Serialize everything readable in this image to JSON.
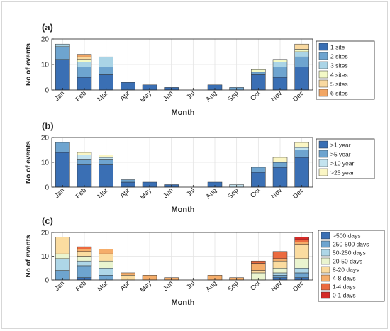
{
  "chart_data": [
    {
      "type": "bar",
      "stacked": true,
      "panel_label": "(a)",
      "xlabel": "Month",
      "ylabel": "No of events",
      "ylim": [
        0,
        20
      ],
      "yticks": [
        0,
        10,
        20
      ],
      "grid": true,
      "legend_position": "right",
      "categories": [
        "Jan",
        "Feb",
        "Mar",
        "Apr",
        "May",
        "Jun",
        "Jul",
        "Aug",
        "Sep",
        "Oct",
        "Nov",
        "Dec"
      ],
      "series": [
        {
          "name": "1 site",
          "color": "#3a6fb4",
          "values": [
            12,
            5,
            6,
            3,
            2,
            1,
            0,
            2,
            0,
            6,
            5,
            9
          ]
        },
        {
          "name": "2 sites",
          "color": "#6ea4cf",
          "values": [
            5,
            4,
            3,
            0,
            0,
            0,
            0,
            0,
            1,
            1,
            4,
            4
          ]
        },
        {
          "name": "3 sites",
          "color": "#aad4e6",
          "values": [
            1,
            2,
            4,
            0,
            0,
            0,
            0,
            0,
            0,
            0,
            2,
            2
          ]
        },
        {
          "name": "4 sites",
          "color": "#f3f9c6",
          "values": [
            0,
            1,
            0,
            0,
            0,
            0,
            0,
            0,
            0,
            1,
            1,
            1
          ]
        },
        {
          "name": "5 sites",
          "color": "#f9d9a0",
          "values": [
            0,
            1,
            0,
            0,
            0,
            0,
            0,
            0,
            0,
            0,
            0,
            2
          ]
        },
        {
          "name": "6 sites",
          "color": "#f2a664",
          "values": [
            0,
            1,
            0,
            0,
            0,
            0,
            0,
            0,
            0,
            0,
            0,
            0
          ]
        }
      ]
    },
    {
      "type": "bar",
      "stacked": true,
      "panel_label": "(b)",
      "xlabel": "Month",
      "ylabel": "No of events",
      "ylim": [
        0,
        20
      ],
      "yticks": [
        0,
        10,
        20
      ],
      "grid": true,
      "legend_position": "right",
      "categories": [
        "Jan",
        "Feb",
        "Mar",
        "Apr",
        "May",
        "Jun",
        "Jul",
        "Aug",
        "Sep",
        "Oct",
        "Nov",
        "Dec"
      ],
      "series": [
        {
          "name": ">1 year",
          "color": "#3a6fb4",
          "values": [
            14,
            9,
            9,
            2,
            2,
            1,
            0,
            2,
            0,
            6,
            8,
            12
          ]
        },
        {
          "name": ">5 year",
          "color": "#6ea4cf",
          "values": [
            4,
            2,
            2,
            1,
            0,
            0,
            0,
            0,
            0,
            2,
            2,
            3
          ]
        },
        {
          "name": ">10 year",
          "color": "#c3e3ef",
          "values": [
            0,
            2,
            1,
            0,
            0,
            0,
            0,
            0,
            1,
            0,
            0,
            1
          ]
        },
        {
          "name": ">25 year",
          "color": "#fbf6c4",
          "values": [
            0,
            1,
            1,
            0,
            0,
            0,
            0,
            0,
            0,
            0,
            2,
            2
          ]
        }
      ]
    },
    {
      "type": "bar",
      "stacked": true,
      "panel_label": "(c)",
      "xlabel": "Month",
      "ylabel": "No of events",
      "ylim": [
        0,
        20
      ],
      "yticks": [
        0,
        10,
        20
      ],
      "grid": true,
      "legend_position": "right",
      "categories": [
        "Jan",
        "Feb",
        "Mar",
        "Apr",
        "May",
        "Jun",
        "Jul",
        "Aug",
        "Sep",
        "Oct",
        "Nov",
        "Dec"
      ],
      "series": [
        {
          "name": ">500 days",
          "color": "#3a6fb4",
          "values": [
            0,
            1,
            0,
            0,
            0,
            0,
            0,
            0,
            0,
            0,
            1,
            1
          ]
        },
        {
          "name": "250-500 days",
          "color": "#6ea4cf",
          "values": [
            4,
            5,
            2,
            0,
            0,
            0,
            0,
            0,
            0,
            0,
            1,
            2
          ]
        },
        {
          "name": "50-250 days",
          "color": "#aed6e7",
          "values": [
            5,
            2,
            3,
            0,
            0,
            0,
            0,
            0,
            0,
            0,
            1,
            2
          ]
        },
        {
          "name": "20-50 days",
          "color": "#eaf4cf",
          "values": [
            2,
            2,
            3,
            0,
            0,
            0,
            0,
            0,
            0,
            3,
            2,
            4
          ]
        },
        {
          "name": "8-20 days",
          "color": "#fbdca0",
          "values": [
            7,
            2,
            3,
            2,
            0,
            0,
            0,
            0,
            0,
            1,
            3,
            6
          ]
        },
        {
          "name": "4-8 days",
          "color": "#f5ad6a",
          "values": [
            0,
            1,
            2,
            1,
            2,
            1,
            0,
            2,
            1,
            3,
            1,
            1
          ]
        },
        {
          "name": "1-4 days",
          "color": "#eb6a3f",
          "values": [
            0,
            1,
            0,
            0,
            0,
            0,
            0,
            0,
            0,
            1,
            3,
            1
          ]
        },
        {
          "name": "0-1 days",
          "color": "#d42b27",
          "values": [
            0,
            0,
            0,
            0,
            0,
            0,
            0,
            0,
            0,
            0,
            0,
            1
          ]
        }
      ]
    }
  ]
}
